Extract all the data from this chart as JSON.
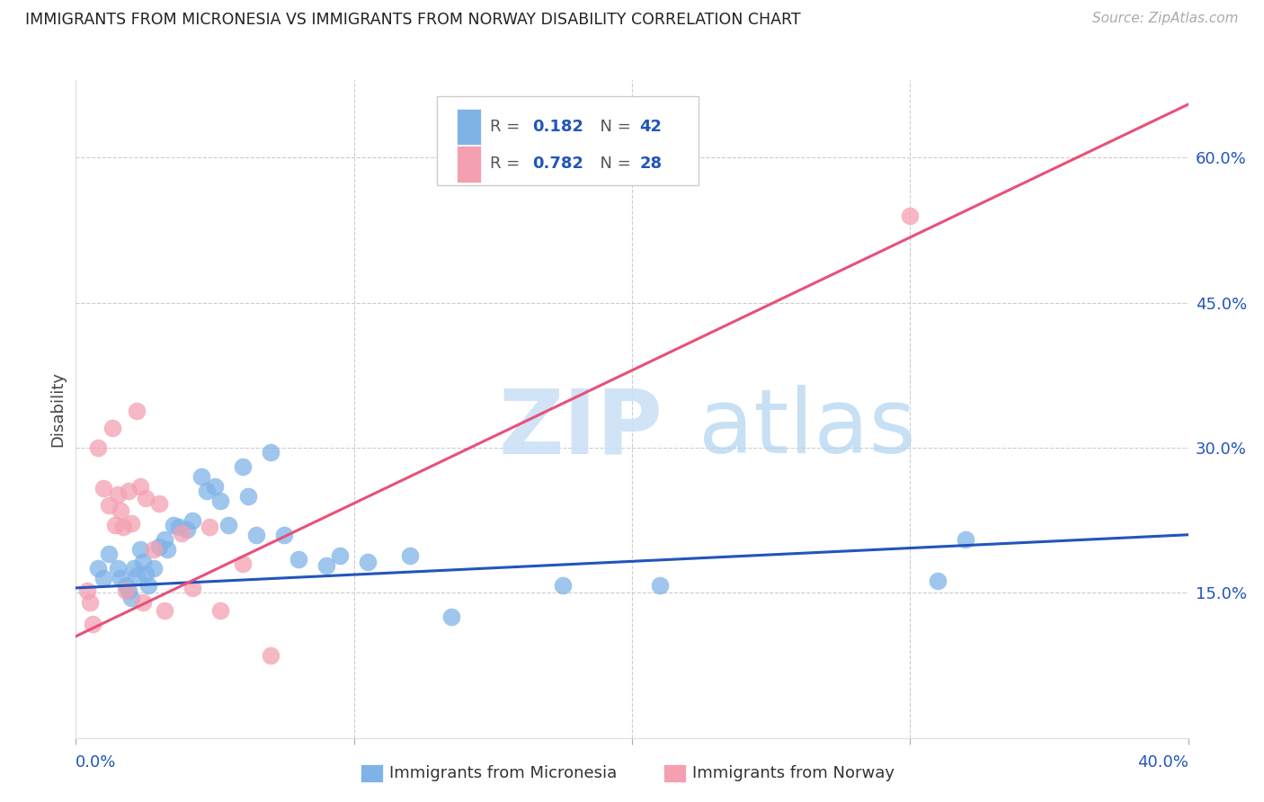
{
  "title": "IMMIGRANTS FROM MICRONESIA VS IMMIGRANTS FROM NORWAY DISABILITY CORRELATION CHART",
  "source": "Source: ZipAtlas.com",
  "ylabel": "Disability",
  "ylabel_right_ticks": [
    "15.0%",
    "30.0%",
    "45.0%",
    "60.0%"
  ],
  "ylabel_right_vals": [
    0.15,
    0.3,
    0.45,
    0.6
  ],
  "xlim": [
    0.0,
    0.4
  ],
  "ylim": [
    0.0,
    0.68
  ],
  "blue_color": "#7FB3E8",
  "pink_color": "#F4A0B0",
  "blue_line_color": "#2255BB",
  "pink_line_color": "#E8507A",
  "R_blue": 0.182,
  "N_blue": 42,
  "R_pink": 0.782,
  "N_pink": 28,
  "watermark_zip": "ZIP",
  "watermark_atlas": "atlas",
  "legend_label_blue": "Immigrants from Micronesia",
  "legend_label_pink": "Immigrants from Norway",
  "blue_x": [
    0.008,
    0.01,
    0.012,
    0.015,
    0.016,
    0.018,
    0.019,
    0.02,
    0.021,
    0.022,
    0.023,
    0.024,
    0.025,
    0.026,
    0.028,
    0.03,
    0.032,
    0.033,
    0.035,
    0.037,
    0.04,
    0.042,
    0.045,
    0.047,
    0.05,
    0.052,
    0.055,
    0.06,
    0.062,
    0.065,
    0.07,
    0.075,
    0.08,
    0.09,
    0.095,
    0.105,
    0.12,
    0.135,
    0.175,
    0.21,
    0.31,
    0.32
  ],
  "blue_y": [
    0.175,
    0.165,
    0.19,
    0.175,
    0.165,
    0.158,
    0.152,
    0.145,
    0.175,
    0.168,
    0.195,
    0.182,
    0.17,
    0.158,
    0.175,
    0.198,
    0.205,
    0.195,
    0.22,
    0.218,
    0.215,
    0.225,
    0.27,
    0.255,
    0.26,
    0.245,
    0.22,
    0.28,
    0.25,
    0.21,
    0.295,
    0.21,
    0.185,
    0.178,
    0.188,
    0.182,
    0.188,
    0.125,
    0.158,
    0.158,
    0.162,
    0.205
  ],
  "pink_x": [
    0.004,
    0.005,
    0.006,
    0.008,
    0.01,
    0.012,
    0.013,
    0.014,
    0.015,
    0.016,
    0.017,
    0.018,
    0.019,
    0.02,
    0.022,
    0.023,
    0.024,
    0.025,
    0.028,
    0.03,
    0.032,
    0.038,
    0.042,
    0.048,
    0.052,
    0.06,
    0.07,
    0.3
  ],
  "pink_y": [
    0.152,
    0.14,
    0.118,
    0.3,
    0.258,
    0.24,
    0.32,
    0.22,
    0.252,
    0.235,
    0.218,
    0.152,
    0.255,
    0.222,
    0.338,
    0.26,
    0.14,
    0.248,
    0.195,
    0.242,
    0.132,
    0.212,
    0.155,
    0.218,
    0.132,
    0.18,
    0.085,
    0.54
  ],
  "blue_trend_x": [
    0.0,
    0.4
  ],
  "blue_trend_y": [
    0.155,
    0.21
  ],
  "pink_trend_x": [
    0.0,
    0.4
  ],
  "pink_trend_y": [
    0.105,
    0.655
  ]
}
